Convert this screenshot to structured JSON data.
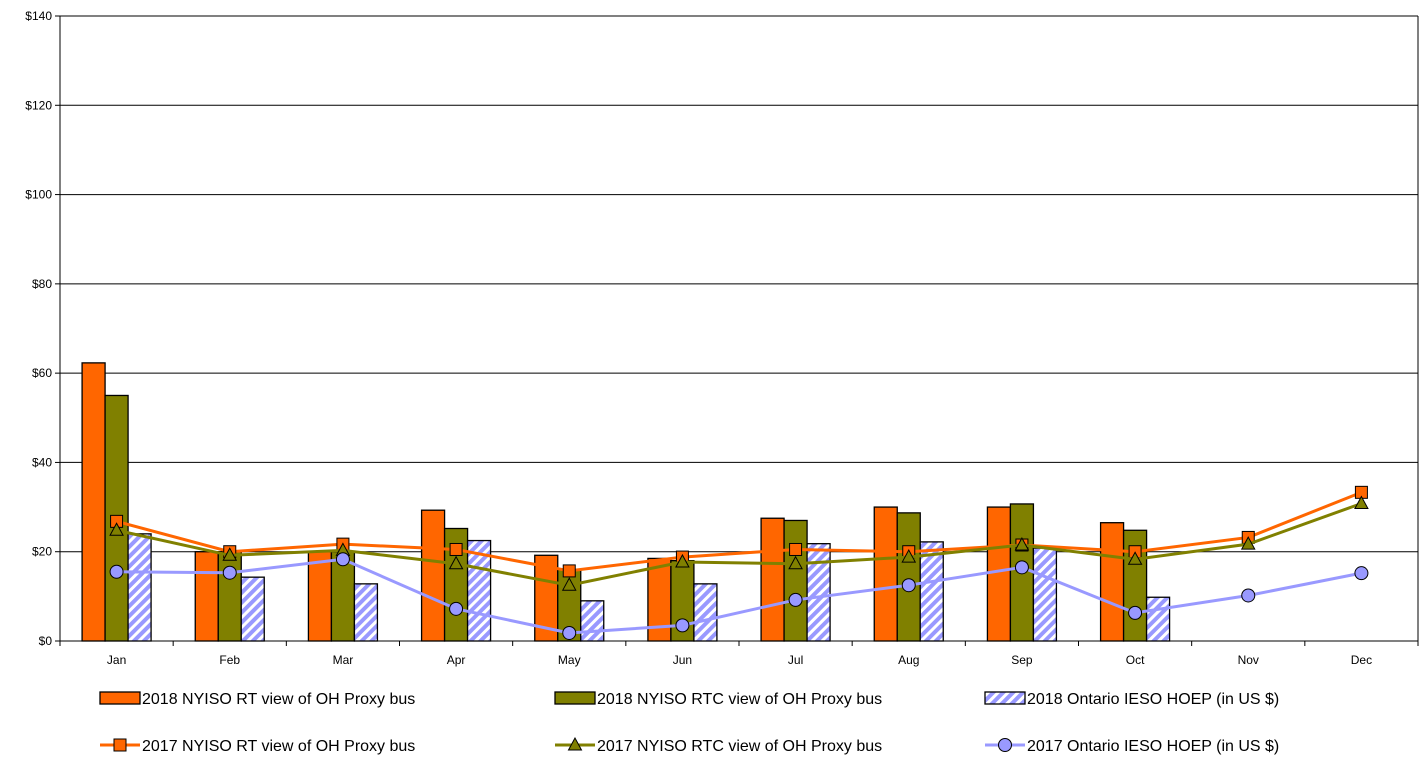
{
  "chart_data": {
    "type": "bar",
    "title": "",
    "xlabel": "",
    "ylabel": "",
    "ylim": [
      0,
      140
    ],
    "yticks": [
      0,
      20,
      40,
      60,
      80,
      100,
      120,
      140
    ],
    "ytick_labels": [
      "$0",
      "$20",
      "$40",
      "$60",
      "$80",
      "$100",
      "$120",
      "$140"
    ],
    "categories": [
      "Jan",
      "Feb",
      "Mar",
      "Apr",
      "May",
      "Jun",
      "Jul",
      "Aug",
      "Sep",
      "Oct",
      "Nov",
      "Dec"
    ],
    "grid": "horizontal",
    "legend_position": "bottom",
    "bar_series": [
      {
        "name": "2018 NYISO RT view of OH Proxy bus",
        "color": "#ff6600",
        "pattern": "solid",
        "values": [
          62.3,
          20.0,
          20.0,
          29.3,
          19.2,
          18.5,
          27.5,
          30.0,
          30.0,
          26.5,
          null,
          null
        ]
      },
      {
        "name": "2018 NYISO RTC view of OH Proxy bus",
        "color": "#808000",
        "pattern": "solid",
        "values": [
          55.0,
          20.0,
          20.0,
          25.2,
          16.0,
          18.0,
          27.0,
          28.7,
          30.7,
          24.8,
          null,
          null
        ]
      },
      {
        "name": "2018 Ontario IESO HOEP (in US $)",
        "color": "#9999ff",
        "pattern": "hatch",
        "values": [
          24.0,
          14.3,
          12.8,
          22.5,
          9.0,
          12.8,
          21.8,
          22.2,
          20.8,
          9.8,
          null,
          null
        ]
      }
    ],
    "line_series": [
      {
        "name": "2017 NYISO RT view of OH Proxy bus",
        "color": "#ff6600",
        "marker": "square",
        "values": [
          26.8,
          20.0,
          21.7,
          20.5,
          15.7,
          18.8,
          20.5,
          20.0,
          21.5,
          20.0,
          23.2,
          33.3
        ]
      },
      {
        "name": "2017 NYISO RTC view of OH Proxy bus",
        "color": "#808000",
        "marker": "triangle",
        "values": [
          24.8,
          19.2,
          20.3,
          17.3,
          12.5,
          17.7,
          17.3,
          18.8,
          21.5,
          18.3,
          21.7,
          30.8
        ]
      },
      {
        "name": "2017 Ontario IESO HOEP (in US $)",
        "color": "#9999ff",
        "marker": "circle",
        "values": [
          15.5,
          15.3,
          18.3,
          7.2,
          1.8,
          3.5,
          9.2,
          12.5,
          16.5,
          6.3,
          10.2,
          15.2
        ]
      }
    ]
  }
}
